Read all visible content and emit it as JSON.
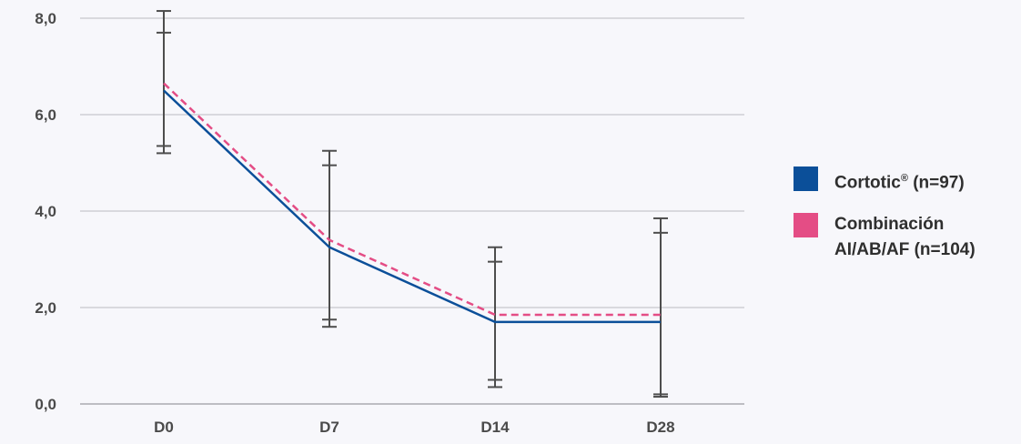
{
  "chart_data": {
    "type": "line",
    "categories": [
      "D0",
      "D7",
      "D14",
      "D28"
    ],
    "y_ticks": [
      "0,0",
      "2,0",
      "4,0",
      "6,0",
      "8,0"
    ],
    "ylim": [
      0,
      8
    ],
    "grid": true,
    "legend_position": "right",
    "series": [
      {
        "name": "Cortotic® (n=97)",
        "name_main": "Cortotic",
        "name_sup": "®",
        "name_rest": " (n=97)",
        "color": "#0b4f99",
        "dash": false,
        "values": [
          6.5,
          3.25,
          1.7,
          1.7
        ],
        "error_low": [
          5.2,
          1.6,
          0.35,
          0.15
        ],
        "error_high": [
          7.7,
          4.95,
          2.95,
          3.55
        ]
      },
      {
        "name": "Combinación AI/AB/AF (n=104)",
        "color": "#e44d85",
        "dash": true,
        "values": [
          6.65,
          3.4,
          1.85,
          1.85
        ],
        "error_low": [
          5.35,
          1.75,
          0.5,
          0.2
        ],
        "error_high": [
          8.15,
          5.25,
          3.25,
          3.85
        ]
      }
    ]
  }
}
